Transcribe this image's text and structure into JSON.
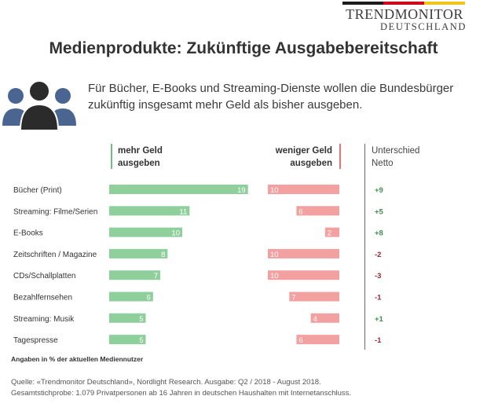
{
  "brand": {
    "line1": "TRENDMONITOR",
    "line2": "DEUTSCHLAND",
    "flag_colors": [
      "#1a1a1a",
      "#d0021b",
      "#f0c419"
    ]
  },
  "title": "Medienprodukte: Zukünftige Ausgabebereitschaft",
  "subtitle_line1": "Für Bücher, E-Books und Streaming-Dienste wollen die Bundesbürger",
  "subtitle_line2": "zukünftig insgesamt mehr Geld als bisher ausgeben.",
  "icon": "people-group-icon",
  "columns": {
    "more_line1": "mehr Geld",
    "more_line2": "ausgeben",
    "less_line1": "weniger Geld",
    "less_line2": "ausgeben",
    "net_line1": "Unterschied",
    "net_line2": "Netto"
  },
  "chart_data": {
    "type": "bar",
    "categories": [
      "Bücher (Print)",
      "Streaming: Filme/Serien",
      "E-Books",
      "Zeitschriften / Magazine",
      "CDs/Schallplatten",
      "Bezahlfernsehen",
      "Streaming: Musik",
      "Tagespresse"
    ],
    "series": [
      {
        "name": "mehr Geld ausgeben",
        "values": [
          19,
          11,
          10,
          8,
          7,
          6,
          5,
          5
        ],
        "color": "#8fcf9c"
      },
      {
        "name": "weniger Geld ausgeben",
        "values": [
          10,
          6,
          2,
          10,
          10,
          7,
          4,
          6
        ],
        "color": "#f2a0a0"
      }
    ],
    "net": [
      "+9",
      "+5",
      "+8",
      "-2",
      "-3",
      "-1",
      "+1",
      "-1"
    ],
    "net_colors": {
      "positive": "#3e8f4f",
      "negative": "#a0252e"
    }
  },
  "footnote": "Angaben in % der aktuellen Mediennutzer",
  "source_line1": "Quelle: «Trendmonitor Deutschland», Nordlight Research. Ausgabe: Q2 / 2018 - August 2018.",
  "source_line2": "Gesamtstichprobe: 1.079 Privatpersonen ab 16 Jahren in deutschen Haushalten mit Internetanschluss."
}
